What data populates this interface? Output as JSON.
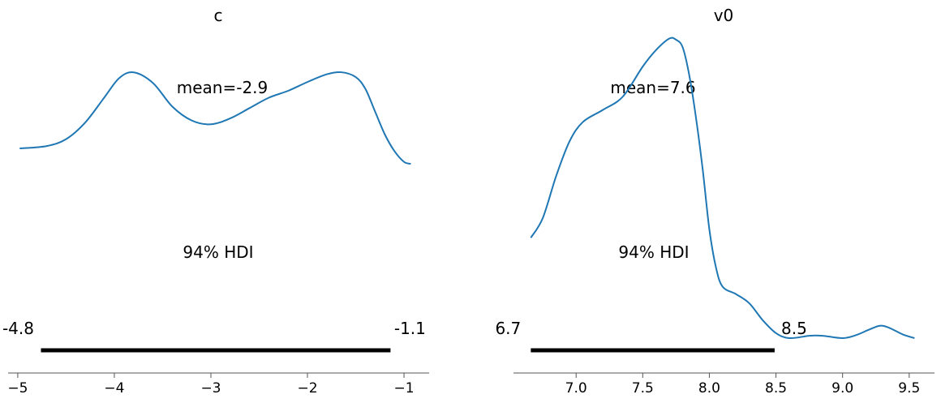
{
  "chart_data": [
    {
      "type": "line",
      "title": "c",
      "mean_label": "mean=-2.9",
      "hdi_label": "94% HDI",
      "hdi": {
        "low": -4.76,
        "high": -1.14,
        "low_label": "-4.8",
        "high_label": "-1.1"
      },
      "xlim": [
        -5.1,
        -0.74
      ],
      "xticks": [
        -5,
        -4,
        -3,
        -2,
        -1
      ],
      "xtick_labels": [
        "−5",
        "−4",
        "−3",
        "−2",
        "−1"
      ],
      "series": [
        {
          "x": [
            -4.98,
            -4.7,
            -4.5,
            -4.3,
            -4.1,
            -3.95,
            -3.8,
            -3.6,
            -3.4,
            -3.2,
            -3.0,
            -2.8,
            -2.6,
            -2.4,
            -2.2,
            -2.0,
            -1.8,
            -1.65,
            -1.5,
            -1.4,
            -1.3,
            -1.2,
            -1.1,
            -1.0,
            -0.93
          ],
          "y": [
            0.127,
            0.147,
            0.204,
            0.343,
            0.553,
            0.709,
            0.757,
            0.669,
            0.474,
            0.359,
            0.327,
            0.376,
            0.461,
            0.547,
            0.604,
            0.677,
            0.741,
            0.758,
            0.718,
            0.62,
            0.433,
            0.245,
            0.106,
            0.016,
            0.0
          ]
        }
      ]
    },
    {
      "type": "line",
      "title": "v0",
      "mean_label": "mean=7.6",
      "hdi_label": "94% HDI",
      "hdi": {
        "low": 6.66,
        "high": 8.49,
        "low_label": "6.7",
        "high_label": "8.5"
      },
      "xlim": [
        6.53,
        9.69
      ],
      "xticks": [
        7.0,
        7.5,
        8.0,
        8.5,
        9.0,
        9.5
      ],
      "xtick_labels": [
        "7.0",
        "7.5",
        "8.0",
        "8.5",
        "9.0",
        "9.5"
      ],
      "series": [
        {
          "x": [
            6.66,
            6.75,
            6.85,
            6.95,
            7.05,
            7.2,
            7.35,
            7.5,
            7.6,
            7.7,
            7.75,
            7.8,
            7.85,
            7.9,
            7.95,
            8.0,
            8.05,
            8.1,
            8.2,
            8.3,
            8.4,
            8.5,
            8.6,
            8.75,
            8.85,
            9.0,
            9.1,
            9.2,
            9.28,
            9.35,
            9.45,
            9.54
          ],
          "y": [
            0.34,
            0.407,
            0.549,
            0.666,
            0.732,
            0.773,
            0.818,
            0.92,
            0.976,
            1.015,
            1.011,
            0.985,
            0.889,
            0.746,
            0.572,
            0.369,
            0.239,
            0.174,
            0.149,
            0.118,
            0.061,
            0.017,
            0.0,
            0.008,
            0.008,
            0.0,
            0.01,
            0.029,
            0.042,
            0.035,
            0.013,
            0.0
          ]
        }
      ]
    }
  ]
}
